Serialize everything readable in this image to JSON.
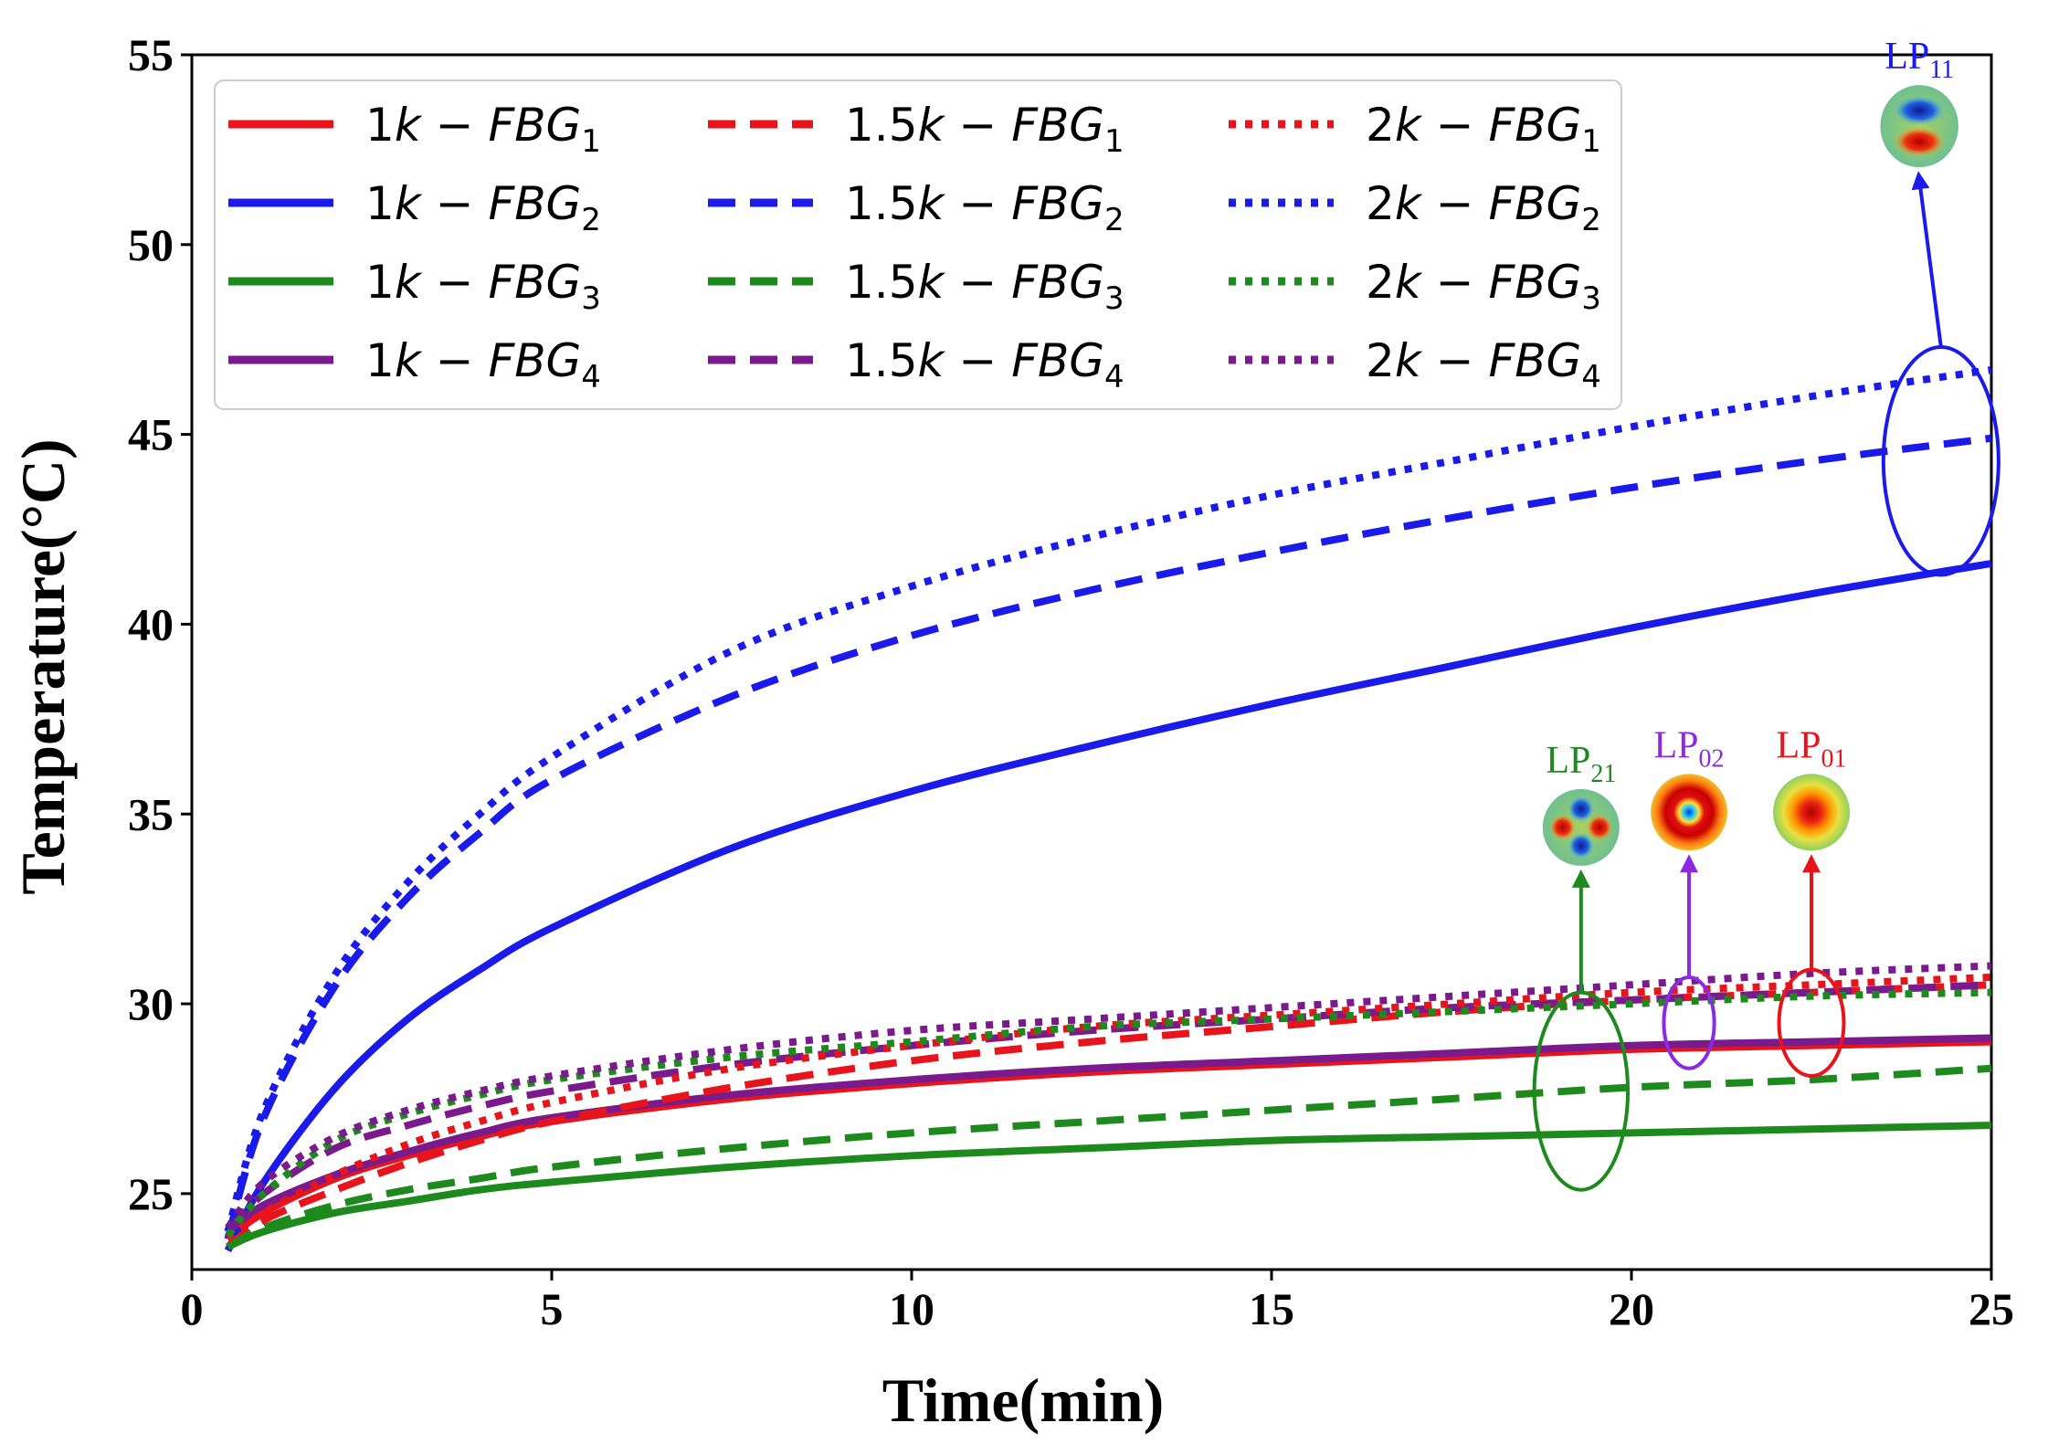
{
  "chart_data": {
    "type": "line",
    "xlabel": "Time(min)",
    "ylabel": "Temperature(°C)",
    "xlim": [
      0,
      25
    ],
    "ylim": [
      23,
      55
    ],
    "xticks": [
      "0",
      "5",
      "10",
      "15",
      "20",
      "25"
    ],
    "yticks": [
      "25",
      "30",
      "35",
      "40",
      "45",
      "50",
      "55"
    ],
    "x": [
      0.5,
      1,
      2,
      3,
      4,
      5,
      7.5,
      10,
      12.5,
      15,
      17.5,
      20,
      22.5,
      25
    ],
    "legend": {
      "placement": "top-left",
      "columns": 3
    },
    "series": [
      {
        "name": "1k-FBG1",
        "pre": "1",
        "idx": "1",
        "color": "#e8141c",
        "style": "solid",
        "values": [
          23.8,
          24.5,
          25.4,
          26.0,
          26.5,
          26.9,
          27.5,
          27.9,
          28.2,
          28.4,
          28.6,
          28.8,
          28.9,
          29.0
        ]
      },
      {
        "name": "1k-FBG2",
        "pre": "1",
        "idx": "2",
        "color": "#1a1aeb",
        "style": "solid",
        "values": [
          23.5,
          25.3,
          27.8,
          29.6,
          30.9,
          32.0,
          34.1,
          35.6,
          36.8,
          37.9,
          38.9,
          39.9,
          40.8,
          41.6
        ]
      },
      {
        "name": "1k-FBG3",
        "pre": "1",
        "idx": "3",
        "color": "#1e8a1e",
        "style": "solid",
        "values": [
          23.6,
          24.0,
          24.5,
          24.8,
          25.1,
          25.3,
          25.7,
          26.0,
          26.2,
          26.4,
          26.5,
          26.6,
          26.7,
          26.8
        ]
      },
      {
        "name": "1k-FBG4",
        "pre": "1",
        "idx": "4",
        "color": "#7a1a8c",
        "style": "solid",
        "values": [
          24.0,
          24.7,
          25.5,
          26.1,
          26.6,
          27.0,
          27.6,
          28.0,
          28.3,
          28.5,
          28.7,
          28.9,
          29.0,
          29.1
        ]
      },
      {
        "name": "1.5k-FBG1",
        "pre": "1.5",
        "idx": "1",
        "color": "#e8141c",
        "style": "dashed",
        "values": [
          23.6,
          24.3,
          25.1,
          25.8,
          26.4,
          26.9,
          27.8,
          28.5,
          29.0,
          29.4,
          29.8,
          30.1,
          30.3,
          30.5
        ]
      },
      {
        "name": "1.5k-FBG2",
        "pre": "1.5",
        "idx": "2",
        "color": "#1a1aeb",
        "style": "dashed",
        "values": [
          23.8,
          27.0,
          30.5,
          32.8,
          34.5,
          35.9,
          38.1,
          39.7,
          40.9,
          41.9,
          42.8,
          43.6,
          44.3,
          44.9
        ]
      },
      {
        "name": "1.5k-FBG3",
        "pre": "1.5",
        "idx": "3",
        "color": "#1e8a1e",
        "style": "dashed",
        "values": [
          23.6,
          24.1,
          24.7,
          25.1,
          25.4,
          25.7,
          26.2,
          26.6,
          26.9,
          27.2,
          27.5,
          27.8,
          28.0,
          28.3
        ]
      },
      {
        "name": "1.5k-FBG4",
        "pre": "1.5",
        "idx": "4",
        "color": "#7a1a8c",
        "style": "dashed",
        "values": [
          24.0,
          25.0,
          26.2,
          26.8,
          27.3,
          27.7,
          28.4,
          28.9,
          29.3,
          29.6,
          29.9,
          30.1,
          30.3,
          30.5
        ]
      },
      {
        "name": "2k-FBG1",
        "pre": "2",
        "idx": "1",
        "color": "#e8141c",
        "style": "dotted",
        "values": [
          23.8,
          24.5,
          25.5,
          26.3,
          26.9,
          27.4,
          28.3,
          28.9,
          29.4,
          29.7,
          30.0,
          30.3,
          30.5,
          30.7
        ]
      },
      {
        "name": "2k-FBG2",
        "pre": "2",
        "idx": "2",
        "color": "#1a1aeb",
        "style": "dotted",
        "values": [
          24.0,
          27.2,
          30.8,
          33.2,
          35.0,
          36.5,
          39.3,
          41.0,
          42.3,
          43.4,
          44.3,
          45.2,
          46.0,
          46.7
        ]
      },
      {
        "name": "2k-FBG3",
        "pre": "2",
        "idx": "3",
        "color": "#1e8a1e",
        "style": "dotted",
        "values": [
          23.9,
          25.0,
          26.4,
          27.1,
          27.6,
          28.0,
          28.6,
          29.0,
          29.4,
          29.6,
          29.8,
          30.0,
          30.2,
          30.3
        ]
      },
      {
        "name": "2k-FBG4",
        "pre": "2",
        "idx": "4",
        "color": "#7a1a8c",
        "style": "dotted",
        "values": [
          24.1,
          25.3,
          26.5,
          27.2,
          27.7,
          28.1,
          28.8,
          29.3,
          29.6,
          29.9,
          30.2,
          30.5,
          30.8,
          31.0
        ]
      }
    ],
    "annotations": [
      {
        "label": "LP",
        "sub": "11",
        "color": "#1a1aeb",
        "ellipse_center": [
          24.3,
          44.3
        ],
        "ellipse_radii": [
          0.8,
          3.0
        ],
        "arrow_to": [
          24.0,
          51.7
        ],
        "mode": "lp11"
      },
      {
        "label": "LP",
        "sub": "21",
        "color": "#1e8a1e",
        "ellipse_center": [
          19.3,
          27.7
        ],
        "ellipse_radii": [
          0.65,
          2.6
        ],
        "arrow_to": [
          19.3,
          33.3
        ],
        "mode": "lp21"
      },
      {
        "label": "LP",
        "sub": "02",
        "color": "#8a2be2",
        "ellipse_center": [
          20.8,
          29.5
        ],
        "ellipse_radii": [
          0.35,
          1.2
        ],
        "arrow_to": [
          20.8,
          33.7
        ],
        "mode": "lp02"
      },
      {
        "label": "LP",
        "sub": "01",
        "color": "#e8141c",
        "ellipse_center": [
          22.5,
          29.5
        ],
        "ellipse_radii": [
          0.45,
          1.4
        ],
        "arrow_to": [
          22.5,
          33.7
        ],
        "mode": "lp01"
      }
    ]
  }
}
